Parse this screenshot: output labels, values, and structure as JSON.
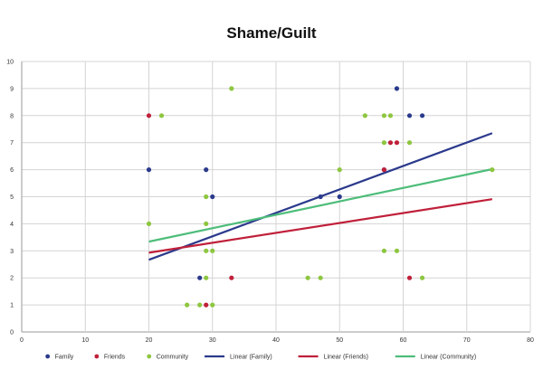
{
  "chart_data": {
    "type": "scatter",
    "title": "Shame/Guilt",
    "xlim": [
      0,
      80
    ],
    "ylim": [
      0,
      10
    ],
    "x_ticks": [
      "0",
      "10",
      "20",
      "30",
      "40",
      "50",
      "60",
      "70",
      "80"
    ],
    "y_ticks": [
      "0",
      "1",
      "2",
      "3",
      "4",
      "5",
      "6",
      "7",
      "8",
      "9",
      "10"
    ],
    "grid": true,
    "legend_position": "bottom",
    "series": [
      {
        "name": "Family",
        "color": "#2b3a8c",
        "points": [
          [
            20,
            6
          ],
          [
            28,
            2
          ],
          [
            29,
            6
          ],
          [
            30,
            5
          ],
          [
            47,
            5
          ],
          [
            50,
            5
          ],
          [
            57,
            6
          ],
          [
            59,
            9
          ],
          [
            61,
            8
          ],
          [
            63,
            8
          ]
        ]
      },
      {
        "name": "Friends",
        "color": "#c0203a",
        "points": [
          [
            20,
            8
          ],
          [
            29,
            1
          ],
          [
            33,
            2
          ],
          [
            57,
            6
          ],
          [
            58,
            7
          ],
          [
            59,
            7
          ],
          [
            61,
            2
          ]
        ]
      },
      {
        "name": "Community",
        "color": "#8dc63f",
        "points": [
          [
            20,
            4
          ],
          [
            22,
            8
          ],
          [
            26,
            1
          ],
          [
            28,
            1
          ],
          [
            29,
            2
          ],
          [
            29,
            3
          ],
          [
            29,
            4
          ],
          [
            29,
            5
          ],
          [
            30,
            1
          ],
          [
            30,
            3
          ],
          [
            33,
            9
          ],
          [
            45,
            2
          ],
          [
            47,
            2
          ],
          [
            50,
            6
          ],
          [
            54,
            8
          ],
          [
            57,
            3
          ],
          [
            57,
            7
          ],
          [
            57,
            8
          ],
          [
            58,
            8
          ],
          [
            59,
            3
          ],
          [
            61,
            7
          ],
          [
            63,
            2
          ],
          [
            74,
            6
          ]
        ]
      }
    ],
    "trendlines": [
      {
        "name": "Linear (Family)",
        "color": "#2b3a8c",
        "x": [
          20,
          74
        ],
        "y": [
          2.67,
          7.35
        ]
      },
      {
        "name": "Linear (Friends)",
        "color": "#c0203a",
        "x": [
          20,
          74
        ],
        "y": [
          2.93,
          4.91
        ]
      },
      {
        "name": "Linear (Community)",
        "color": "#4dbd7a",
        "x": [
          20,
          74
        ],
        "y": [
          3.34,
          6.02
        ]
      }
    ]
  }
}
